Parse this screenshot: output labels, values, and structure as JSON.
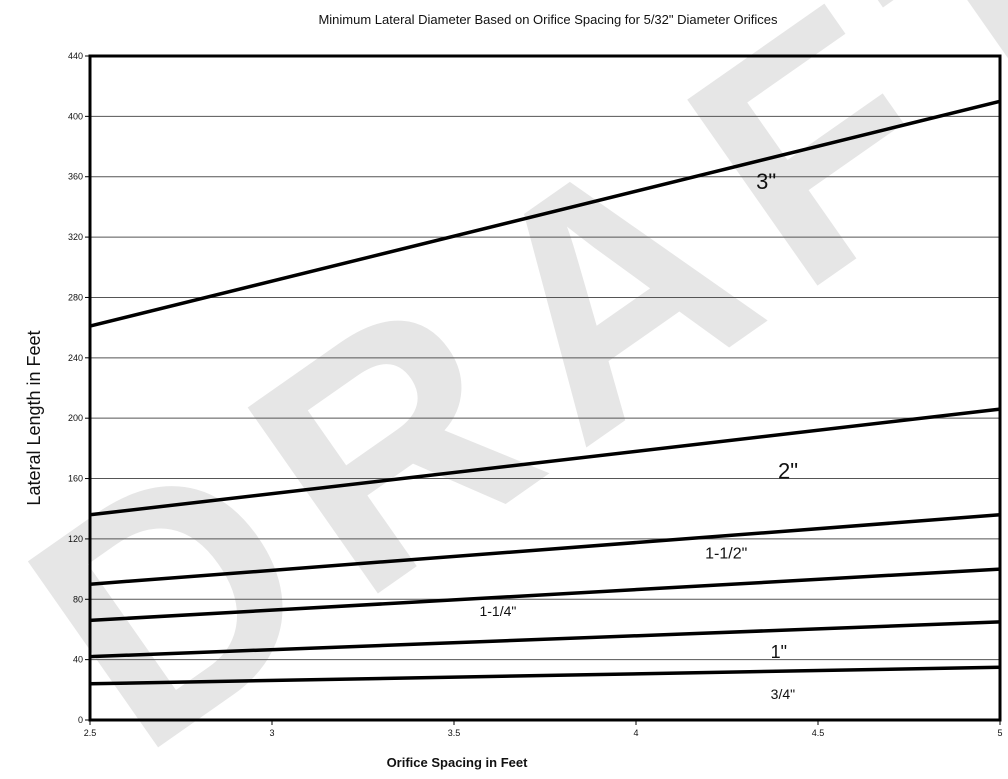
{
  "chart_data": {
    "type": "line",
    "title": "Minimum Lateral Diameter Based on Orifice Spacing for 5/32\" Diameter Orifices",
    "xlabel": "Orifice Spacing in Feet",
    "ylabel": "Lateral Length in Feet",
    "xlim": [
      2.5,
      5
    ],
    "ylim": [
      0,
      440
    ],
    "x_ticks": [
      "2.5",
      "3",
      "3.5",
      "4",
      "4.5",
      "5"
    ],
    "y_ticks": [
      "0",
      "40",
      "80",
      "120",
      "160",
      "200",
      "240",
      "280",
      "320",
      "360",
      "400",
      "440"
    ],
    "grid": "horizontal",
    "legend": "inline-labels",
    "series": [
      {
        "name": "3\"",
        "x": [
          2.5,
          5
        ],
        "y": [
          261,
          410
        ]
      },
      {
        "name": "2\"",
        "x": [
          2.5,
          5
        ],
        "y": [
          136,
          206
        ]
      },
      {
        "name": "1-1/2\"",
        "x": [
          2.5,
          5
        ],
        "y": [
          90,
          136
        ]
      },
      {
        "name": "1-1/4\"",
        "x": [
          2.5,
          5
        ],
        "y": [
          66,
          100
        ]
      },
      {
        "name": "1\"",
        "x": [
          2.5,
          5
        ],
        "y": [
          42,
          65
        ]
      },
      {
        "name": "3/4\"",
        "x": [
          2.5,
          5
        ],
        "y": [
          24,
          35
        ]
      }
    ]
  },
  "watermark": "DRAFT",
  "colors": {
    "line": "#000000",
    "grid": "#555555",
    "watermark": "#e6e6e6"
  }
}
